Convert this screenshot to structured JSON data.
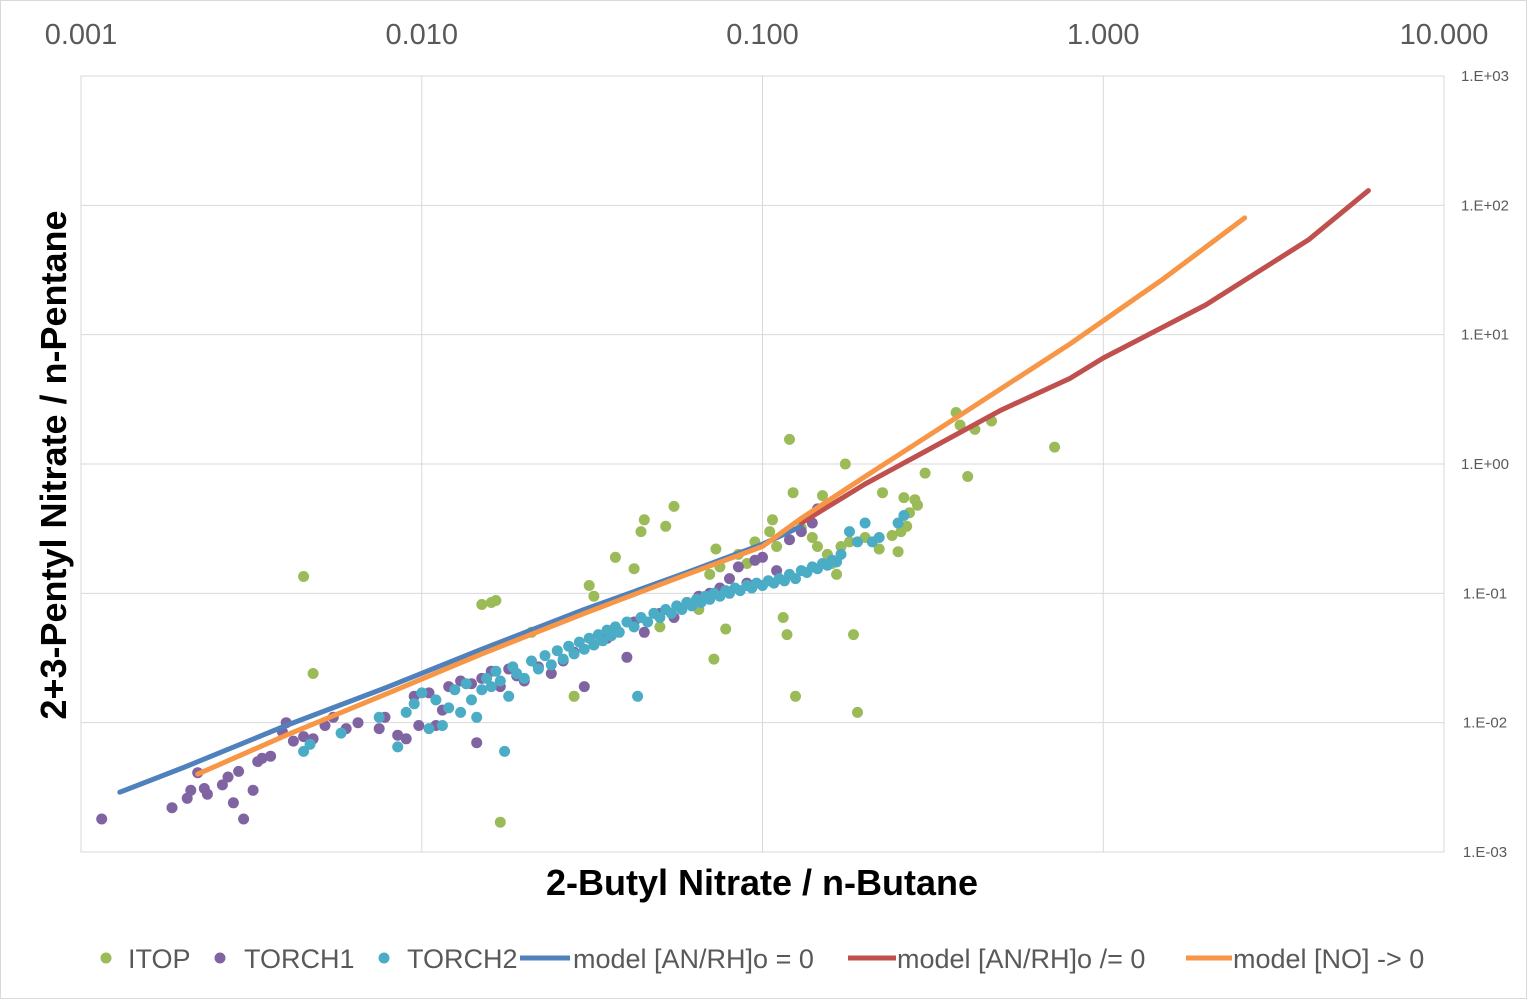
{
  "chart_data": {
    "type": "scatter",
    "title": "",
    "xlabel": "2-Butyl Nitrate / n-Butane",
    "ylabel": "2+3-Pentyl Nitrate / n-Pentane",
    "xscale": "log",
    "yscale": "log",
    "xlim": [
      0.001,
      10
    ],
    "ylim": [
      0.001,
      1000
    ],
    "x_axis_position": "top",
    "y_axis_position": "right",
    "x_tick_labels": [
      "0.001",
      "0.010",
      "0.100",
      "1.000",
      "10.000"
    ],
    "y_tick_labels": [
      "1.E-03",
      "1.E-02",
      "1.E-01",
      "1.E+00",
      "1.E+01",
      "1.E+02",
      "1.E+03"
    ],
    "grid": true,
    "legend_position": "bottom",
    "series": [
      {
        "name": "ITOP",
        "kind": "scatter",
        "color": "#9bbb59",
        "points": [
          [
            0.0045,
            0.135
          ],
          [
            0.0048,
            0.024
          ],
          [
            0.017,
            0.0017
          ],
          [
            0.015,
            0.082
          ],
          [
            0.016,
            0.085
          ],
          [
            0.0165,
            0.088
          ],
          [
            0.021,
            0.05
          ],
          [
            0.028,
            0.016
          ],
          [
            0.031,
            0.115
          ],
          [
            0.032,
            0.095
          ],
          [
            0.037,
            0.19
          ],
          [
            0.042,
            0.155
          ],
          [
            0.044,
            0.3
          ],
          [
            0.045,
            0.37
          ],
          [
            0.048,
            0.07
          ],
          [
            0.05,
            0.055
          ],
          [
            0.052,
            0.33
          ],
          [
            0.055,
            0.47
          ],
          [
            0.06,
            0.085
          ],
          [
            0.065,
            0.075
          ],
          [
            0.07,
            0.14
          ],
          [
            0.072,
            0.031
          ],
          [
            0.073,
            0.22
          ],
          [
            0.075,
            0.16
          ],
          [
            0.078,
            0.053
          ],
          [
            0.085,
            0.2
          ],
          [
            0.09,
            0.17
          ],
          [
            0.095,
            0.25
          ],
          [
            0.105,
            0.3
          ],
          [
            0.107,
            0.37
          ],
          [
            0.11,
            0.23
          ],
          [
            0.115,
            0.065
          ],
          [
            0.118,
            0.048
          ],
          [
            0.12,
            1.55
          ],
          [
            0.123,
            0.6
          ],
          [
            0.125,
            0.016
          ],
          [
            0.13,
            0.32
          ],
          [
            0.14,
            0.27
          ],
          [
            0.145,
            0.23
          ],
          [
            0.15,
            0.57
          ],
          [
            0.155,
            0.2
          ],
          [
            0.16,
            0.17
          ],
          [
            0.165,
            0.14
          ],
          [
            0.17,
            0.23
          ],
          [
            0.175,
            1.0
          ],
          [
            0.18,
            0.25
          ],
          [
            0.185,
            0.048
          ],
          [
            0.19,
            0.012
          ],
          [
            0.2,
            0.27
          ],
          [
            0.22,
            0.22
          ],
          [
            0.225,
            0.6
          ],
          [
            0.24,
            0.28
          ],
          [
            0.25,
            0.21
          ],
          [
            0.255,
            0.3
          ],
          [
            0.26,
            0.55
          ],
          [
            0.265,
            0.33
          ],
          [
            0.27,
            0.42
          ],
          [
            0.28,
            0.53
          ],
          [
            0.285,
            0.48
          ],
          [
            0.3,
            0.85
          ],
          [
            0.37,
            2.5
          ],
          [
            0.38,
            2.0
          ],
          [
            0.4,
            0.8
          ],
          [
            0.42,
            1.85
          ],
          [
            0.47,
            2.15
          ],
          [
            0.72,
            1.35
          ]
        ]
      },
      {
        "name": "TORCH1",
        "kind": "scatter",
        "color": "#8064a2",
        "points": [
          [
            0.00115,
            0.0018
          ],
          [
            0.00185,
            0.0022
          ],
          [
            0.00205,
            0.0026
          ],
          [
            0.0021,
            0.003
          ],
          [
            0.0022,
            0.0041
          ],
          [
            0.0023,
            0.0031
          ],
          [
            0.00235,
            0.0028
          ],
          [
            0.0026,
            0.0033
          ],
          [
            0.0027,
            0.0038
          ],
          [
            0.0028,
            0.0024
          ],
          [
            0.0029,
            0.0042
          ],
          [
            0.003,
            0.0018
          ],
          [
            0.0032,
            0.003
          ],
          [
            0.0033,
            0.005
          ],
          [
            0.0034,
            0.0053
          ],
          [
            0.0036,
            0.0055
          ],
          [
            0.0039,
            0.0085
          ],
          [
            0.004,
            0.01
          ],
          [
            0.0042,
            0.0072
          ],
          [
            0.0045,
            0.0078
          ],
          [
            0.0048,
            0.0075
          ],
          [
            0.0052,
            0.0095
          ],
          [
            0.0055,
            0.011
          ],
          [
            0.006,
            0.009
          ],
          [
            0.0065,
            0.01
          ],
          [
            0.0075,
            0.009
          ],
          [
            0.0078,
            0.011
          ],
          [
            0.0085,
            0.008
          ],
          [
            0.009,
            0.0075
          ],
          [
            0.0095,
            0.016
          ],
          [
            0.0098,
            0.0095
          ],
          [
            0.0105,
            0.017
          ],
          [
            0.011,
            0.0095
          ],
          [
            0.0115,
            0.0125
          ],
          [
            0.012,
            0.019
          ],
          [
            0.013,
            0.021
          ],
          [
            0.014,
            0.02
          ],
          [
            0.0145,
            0.007
          ],
          [
            0.015,
            0.022
          ],
          [
            0.016,
            0.025
          ],
          [
            0.017,
            0.019
          ],
          [
            0.018,
            0.026
          ],
          [
            0.019,
            0.023
          ],
          [
            0.02,
            0.021
          ],
          [
            0.022,
            0.027
          ],
          [
            0.024,
            0.024
          ],
          [
            0.026,
            0.03
          ],
          [
            0.028,
            0.035
          ],
          [
            0.03,
            0.019
          ],
          [
            0.032,
            0.04
          ],
          [
            0.035,
            0.045
          ],
          [
            0.04,
            0.032
          ],
          [
            0.042,
            0.06
          ],
          [
            0.045,
            0.05
          ],
          [
            0.05,
            0.07
          ],
          [
            0.055,
            0.065
          ],
          [
            0.06,
            0.085
          ],
          [
            0.065,
            0.095
          ],
          [
            0.07,
            0.1
          ],
          [
            0.075,
            0.11
          ],
          [
            0.08,
            0.13
          ],
          [
            0.085,
            0.16
          ],
          [
            0.09,
            0.12
          ],
          [
            0.095,
            0.18
          ],
          [
            0.1,
            0.19
          ],
          [
            0.11,
            0.15
          ],
          [
            0.12,
            0.26
          ],
          [
            0.13,
            0.3
          ],
          [
            0.14,
            0.35
          ],
          [
            0.145,
            0.45
          ]
        ]
      },
      {
        "name": "TORCH2",
        "kind": "scatter",
        "color": "#4bacc6",
        "points": [
          [
            0.0045,
            0.006
          ],
          [
            0.0047,
            0.0068
          ],
          [
            0.0058,
            0.0083
          ],
          [
            0.0075,
            0.011
          ],
          [
            0.0085,
            0.0065
          ],
          [
            0.009,
            0.012
          ],
          [
            0.0095,
            0.014
          ],
          [
            0.01,
            0.017
          ],
          [
            0.0105,
            0.009
          ],
          [
            0.011,
            0.015
          ],
          [
            0.0115,
            0.0095
          ],
          [
            0.012,
            0.013
          ],
          [
            0.0125,
            0.018
          ],
          [
            0.013,
            0.012
          ],
          [
            0.0135,
            0.02
          ],
          [
            0.014,
            0.015
          ],
          [
            0.0145,
            0.011
          ],
          [
            0.015,
            0.018
          ],
          [
            0.0155,
            0.022
          ],
          [
            0.016,
            0.019
          ],
          [
            0.0165,
            0.025
          ],
          [
            0.017,
            0.021
          ],
          [
            0.0175,
            0.006
          ],
          [
            0.018,
            0.016
          ],
          [
            0.0185,
            0.027
          ],
          [
            0.019,
            0.024
          ],
          [
            0.02,
            0.022
          ],
          [
            0.021,
            0.03
          ],
          [
            0.022,
            0.026
          ],
          [
            0.023,
            0.033
          ],
          [
            0.024,
            0.028
          ],
          [
            0.025,
            0.036
          ],
          [
            0.026,
            0.031
          ],
          [
            0.027,
            0.039
          ],
          [
            0.028,
            0.034
          ],
          [
            0.029,
            0.042
          ],
          [
            0.03,
            0.037
          ],
          [
            0.031,
            0.045
          ],
          [
            0.032,
            0.04
          ],
          [
            0.033,
            0.048
          ],
          [
            0.034,
            0.043
          ],
          [
            0.035,
            0.052
          ],
          [
            0.036,
            0.047
          ],
          [
            0.037,
            0.055
          ],
          [
            0.038,
            0.05
          ],
          [
            0.04,
            0.06
          ],
          [
            0.042,
            0.055
          ],
          [
            0.043,
            0.016
          ],
          [
            0.044,
            0.065
          ],
          [
            0.046,
            0.06
          ],
          [
            0.048,
            0.07
          ],
          [
            0.05,
            0.065
          ],
          [
            0.052,
            0.075
          ],
          [
            0.054,
            0.07
          ],
          [
            0.056,
            0.08
          ],
          [
            0.058,
            0.075
          ],
          [
            0.06,
            0.085
          ],
          [
            0.062,
            0.08
          ],
          [
            0.064,
            0.09
          ],
          [
            0.066,
            0.085
          ],
          [
            0.068,
            0.095
          ],
          [
            0.07,
            0.09
          ],
          [
            0.072,
            0.1
          ],
          [
            0.075,
            0.095
          ],
          [
            0.078,
            0.105
          ],
          [
            0.08,
            0.1
          ],
          [
            0.083,
            0.11
          ],
          [
            0.086,
            0.105
          ],
          [
            0.09,
            0.115
          ],
          [
            0.093,
            0.11
          ],
          [
            0.096,
            0.12
          ],
          [
            0.1,
            0.115
          ],
          [
            0.104,
            0.125
          ],
          [
            0.108,
            0.12
          ],
          [
            0.112,
            0.13
          ],
          [
            0.116,
            0.125
          ],
          [
            0.12,
            0.14
          ],
          [
            0.125,
            0.13
          ],
          [
            0.13,
            0.15
          ],
          [
            0.135,
            0.145
          ],
          [
            0.14,
            0.16
          ],
          [
            0.145,
            0.155
          ],
          [
            0.15,
            0.17
          ],
          [
            0.155,
            0.165
          ],
          [
            0.16,
            0.18
          ],
          [
            0.165,
            0.175
          ],
          [
            0.17,
            0.2
          ],
          [
            0.18,
            0.3
          ],
          [
            0.19,
            0.25
          ],
          [
            0.2,
            0.35
          ],
          [
            0.21,
            0.25
          ],
          [
            0.22,
            0.27
          ],
          [
            0.25,
            0.35
          ],
          [
            0.26,
            0.4
          ]
        ]
      },
      {
        "name": "model [AN/RH]o = 0",
        "kind": "line",
        "color": "#4f81bd",
        "points": [
          [
            0.0013,
            0.0029
          ],
          [
            0.002,
            0.0045
          ],
          [
            0.004,
            0.0095
          ],
          [
            0.008,
            0.019
          ],
          [
            0.015,
            0.037
          ],
          [
            0.03,
            0.075
          ],
          [
            0.06,
            0.145
          ],
          [
            0.1,
            0.24
          ],
          [
            0.13,
            0.33
          ]
        ]
      },
      {
        "name": "model [AN/RH]o /= 0",
        "kind": "line",
        "color": "#c0504d",
        "points": [
          [
            0.13,
            0.35
          ],
          [
            0.2,
            0.7
          ],
          [
            0.3,
            1.25
          ],
          [
            0.5,
            2.6
          ],
          [
            0.8,
            4.6
          ],
          [
            1.0,
            6.6
          ],
          [
            2.0,
            17
          ],
          [
            4.0,
            54
          ],
          [
            6.0,
            130
          ]
        ]
      },
      {
        "name": "model [NO] -> 0",
        "kind": "line",
        "color": "#f79646",
        "points": [
          [
            0.0022,
            0.004
          ],
          [
            0.004,
            0.008
          ],
          [
            0.008,
            0.017
          ],
          [
            0.015,
            0.034
          ],
          [
            0.03,
            0.07
          ],
          [
            0.06,
            0.14
          ],
          [
            0.1,
            0.23
          ],
          [
            0.13,
            0.38
          ],
          [
            0.2,
            0.8
          ],
          [
            0.4,
            2.6
          ],
          [
            0.8,
            8.5
          ],
          [
            1.5,
            27
          ],
          [
            2.6,
            80
          ]
        ]
      }
    ]
  }
}
